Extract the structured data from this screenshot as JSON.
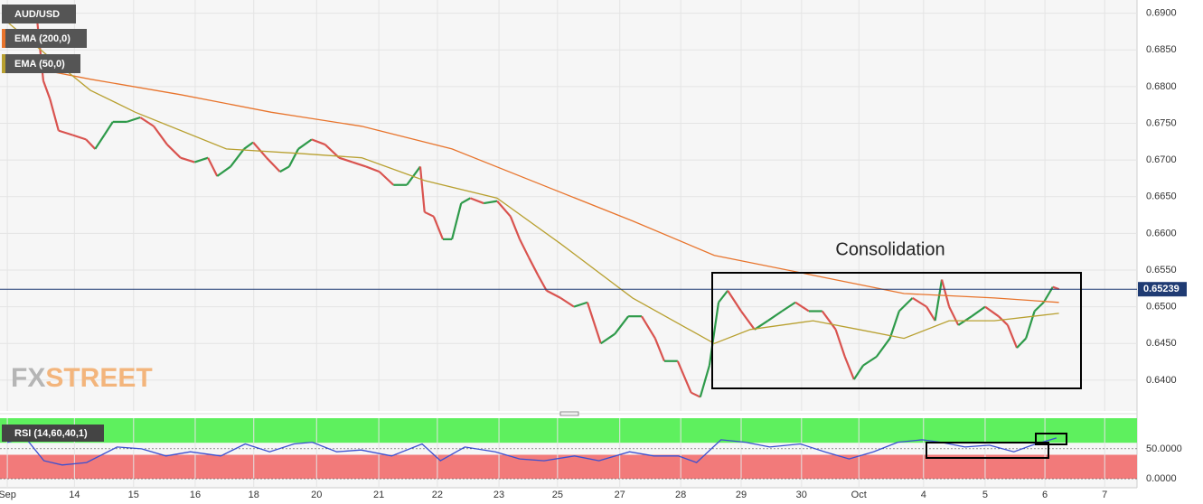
{
  "chart_data": [
    {
      "type": "line",
      "annotation": "Consolidation",
      "watermark": [
        "FX",
        "STREET"
      ],
      "last_price": 0.65239,
      "last_price_color": "#1f3b73",
      "grid": true,
      "xlim": [
        -0.12,
        18.52
      ],
      "ylim": [
        0.6358,
        0.6918
      ],
      "xticks": [
        {
          "value": 0,
          "label": "Sep"
        },
        {
          "value": 1.1,
          "label": "14"
        },
        {
          "value": 2.07,
          "label": "15"
        },
        {
          "value": 3.08,
          "label": "16"
        },
        {
          "value": 4.04,
          "label": "18"
        },
        {
          "value": 5.07,
          "label": "20"
        },
        {
          "value": 6.09,
          "label": "21"
        },
        {
          "value": 7.05,
          "label": "22"
        },
        {
          "value": 8.06,
          "label": "23"
        },
        {
          "value": 9.02,
          "label": "25"
        },
        {
          "value": 10.04,
          "label": "27"
        },
        {
          "value": 11.04,
          "label": "28"
        },
        {
          "value": 12.03,
          "label": "29"
        },
        {
          "value": 13.02,
          "label": "30"
        },
        {
          "value": 13.96,
          "label": "Oct"
        },
        {
          "value": 15.02,
          "label": "4"
        },
        {
          "value": 16.03,
          "label": "5"
        },
        {
          "value": 17.01,
          "label": "6"
        },
        {
          "value": 17.99,
          "label": "7"
        }
      ],
      "yticks": [
        {
          "value": 0.64,
          "label": "0.6400"
        },
        {
          "value": 0.645,
          "label": "0.6450"
        },
        {
          "value": 0.65,
          "label": "0.6500"
        },
        {
          "value": 0.655,
          "label": "0.6550"
        },
        {
          "value": 0.66,
          "label": "0.6600"
        },
        {
          "value": 0.665,
          "label": "0.6650"
        },
        {
          "value": 0.67,
          "label": "0.6700"
        },
        {
          "value": 0.675,
          "label": "0.6750"
        },
        {
          "value": 0.68,
          "label": "0.6800"
        },
        {
          "value": 0.685,
          "label": "0.6850"
        },
        {
          "value": 0.69,
          "label": "0.6900"
        }
      ],
      "series": [
        {
          "name": "AUD/USD",
          "up_color": "#2e9a4a",
          "down_color": "#d9534f",
          "x": [
            0,
            0.18,
            0.47,
            0.59,
            0.7,
            0.84,
            1.07,
            1.29,
            1.44,
            1.59,
            1.73,
            1.96,
            2.18,
            2.4,
            2.62,
            2.84,
            3.07,
            3.29,
            3.44,
            3.66,
            3.88,
            4.03,
            4.25,
            4.47,
            4.62,
            4.77,
            4.99,
            5.21,
            5.44,
            5.66,
            5.88,
            6.1,
            6.33,
            6.55,
            6.77,
            6.84,
            6.99,
            7.14,
            7.29,
            7.44,
            7.59,
            7.81,
            8.03,
            8.25,
            8.4,
            8.55,
            8.7,
            8.84,
            9.07,
            9.29,
            9.51,
            9.73,
            9.96,
            10.18,
            10.4,
            10.62,
            10.77,
            10.99,
            11.21,
            11.36,
            11.51,
            11.66,
            11.81,
            12.03,
            12.25,
            12.47,
            12.7,
            12.92,
            13.14,
            13.36,
            13.58,
            13.73,
            13.88,
            14.03,
            14.25,
            14.47,
            14.62,
            14.84,
            15.07,
            15.21,
            15.32,
            15.44,
            15.59,
            15.81,
            16.03,
            16.25,
            16.4,
            16.55,
            16.7,
            16.84,
            16.99,
            17.14,
            17.24
          ],
          "values": [
            0.6894,
            0.6906,
            0.6906,
            0.6808,
            0.6783,
            0.674,
            0.6734,
            0.6728,
            0.6715,
            0.6734,
            0.6752,
            0.6752,
            0.6758,
            0.6746,
            0.6721,
            0.6703,
            0.6697,
            0.6703,
            0.6678,
            0.6691,
            0.6715,
            0.6724,
            0.6703,
            0.6684,
            0.6691,
            0.6715,
            0.6728,
            0.6721,
            0.6703,
            0.6697,
            0.6691,
            0.6684,
            0.6666,
            0.6666,
            0.6691,
            0.6629,
            0.6623,
            0.6592,
            0.6592,
            0.6641,
            0.6648,
            0.6641,
            0.6644,
            0.6623,
            0.6592,
            0.6567,
            0.6543,
            0.6522,
            0.6512,
            0.65,
            0.6506,
            0.645,
            0.6463,
            0.6487,
            0.6487,
            0.6457,
            0.6426,
            0.6426,
            0.6383,
            0.6377,
            0.642,
            0.6506,
            0.6522,
            0.6494,
            0.6469,
            0.6481,
            0.6494,
            0.6506,
            0.6494,
            0.6494,
            0.6469,
            0.6432,
            0.6401,
            0.642,
            0.6432,
            0.6457,
            0.6494,
            0.6512,
            0.65,
            0.6481,
            0.6537,
            0.65,
            0.6475,
            0.6487,
            0.65,
            0.6487,
            0.6475,
            0.6444,
            0.6457,
            0.6494,
            0.6506,
            0.6527,
            0.6524
          ]
        },
        {
          "name": "EMA (200,0)",
          "color": "#e8742c",
          "x": [
            0,
            1.36,
            2.84,
            4.33,
            5.81,
            7.29,
            8.77,
            10.25,
            11.59,
            13.21,
            14.7,
            16.18,
            17.24
          ],
          "values": [
            0.6832,
            0.681,
            0.6789,
            0.6765,
            0.6746,
            0.6715,
            0.6666,
            0.6617,
            0.657,
            0.6543,
            0.6518,
            0.6512,
            0.6506
          ]
        },
        {
          "name": "EMA (50,0)",
          "color": "#b8a030",
          "x": [
            0,
            0.62,
            1.36,
            2.1,
            3.59,
            4.77,
            5.81,
            6.84,
            8.03,
            9.07,
            10.25,
            11.59,
            12.18,
            13.21,
            13.96,
            14.7,
            15.44,
            16.18,
            17.24
          ],
          "values": [
            0.6888,
            0.6845,
            0.6795,
            0.6765,
            0.6715,
            0.6709,
            0.6703,
            0.6672,
            0.6648,
            0.6586,
            0.6512,
            0.645,
            0.6469,
            0.6481,
            0.6469,
            0.6457,
            0.6481,
            0.6481,
            0.6491
          ]
        }
      ]
    },
    {
      "type": "line",
      "label": "RSI (14,60,40,1)",
      "upper_band": 60,
      "lower_band": 40,
      "upper_color": "#5ef05e",
      "lower_color": "#f27a7a",
      "xlim": [
        -0.12,
        18.52
      ],
      "ylim": [
        -15,
        101
      ],
      "yticks": [
        {
          "value": 0,
          "label": "0.0000"
        },
        {
          "value": 50,
          "label": "50.0000"
        }
      ],
      "series": [
        {
          "name": "RSI",
          "color": "#3a4fd1",
          "x": [
            0,
            0.3,
            0.6,
            0.9,
            1.3,
            1.8,
            2.2,
            2.6,
            3.0,
            3.5,
            3.9,
            4.3,
            4.7,
            5.0,
            5.4,
            5.8,
            6.3,
            6.8,
            7.1,
            7.5,
            8.0,
            8.4,
            8.8,
            9.3,
            9.7,
            10.2,
            10.6,
            11.0,
            11.3,
            11.7,
            12.1,
            12.5,
            13.0,
            13.4,
            13.8,
            14.2,
            14.6,
            15.0,
            15.3,
            15.7,
            16.1,
            16.5,
            16.8,
            17.2
          ],
          "values": [
            60.6,
            68,
            30,
            23,
            27,
            53,
            50,
            38,
            45,
            38,
            58,
            45,
            58,
            61,
            45,
            48,
            38,
            58,
            30,
            53,
            45,
            33,
            30,
            38,
            30,
            45,
            38,
            38,
            27,
            65,
            61,
            53,
            58,
            45,
            33,
            45,
            61,
            65,
            61,
            53,
            56,
            45,
            56,
            68
          ]
        }
      ]
    }
  ]
}
